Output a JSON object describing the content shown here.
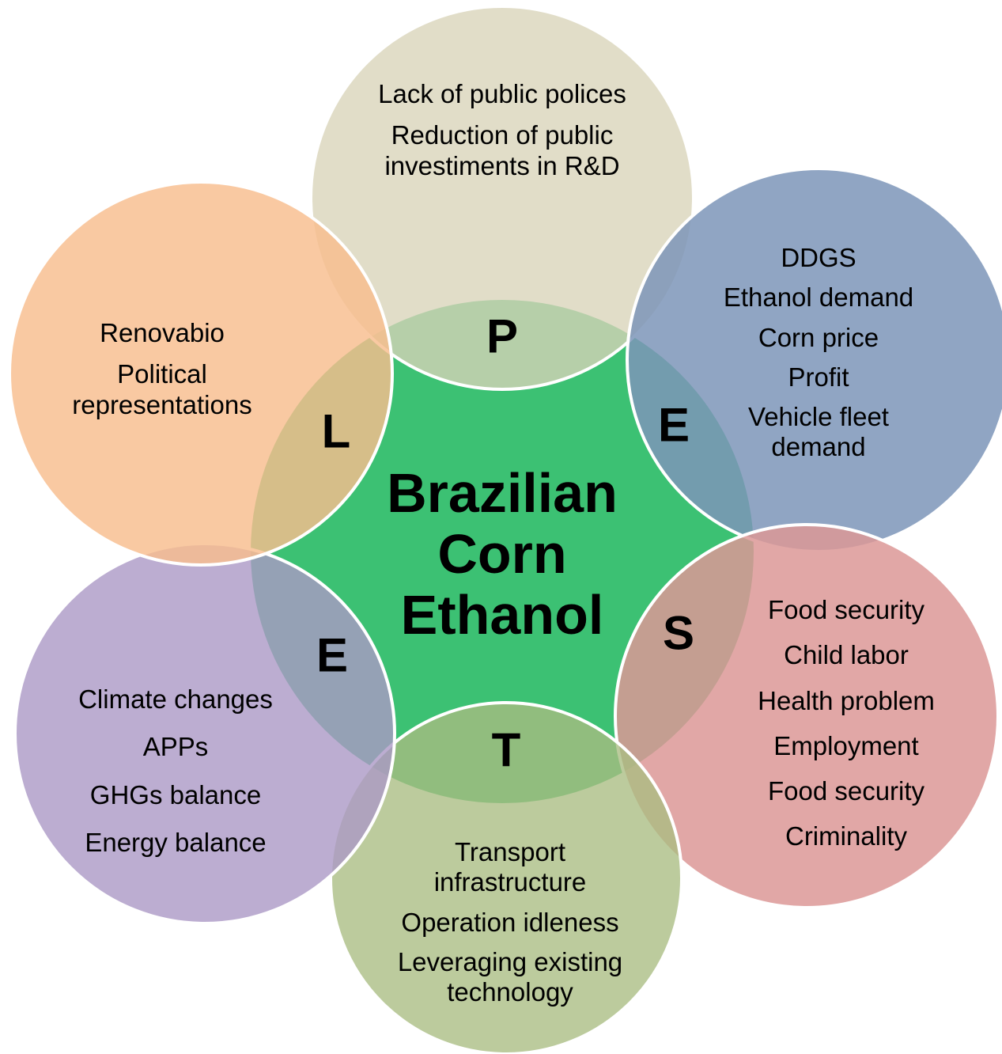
{
  "center": {
    "title": "Brazilian Corn Ethanol"
  },
  "nodes": [
    {
      "letter": "P",
      "items": [
        "Lack of public polices",
        "Reduction of public investiments in R&D"
      ]
    },
    {
      "letter": "E",
      "items": [
        "DDGS",
        "Ethanol demand",
        "Corn price",
        "Profit",
        "Vehicle fleet demand"
      ]
    },
    {
      "letter": "S",
      "items": [
        "Food security",
        "Child labor",
        "Health problem",
        "Employment",
        "Food security",
        "Criminality"
      ]
    },
    {
      "letter": "T",
      "items": [
        "Transport infrastructure",
        "Operation idleness",
        "Leveraging existing technology"
      ]
    },
    {
      "letter": "E",
      "items": [
        "Climate changes",
        "APPs",
        "GHGs balance",
        "Energy balance"
      ]
    },
    {
      "letter": "L",
      "items": [
        "Renovabio",
        "Political representations"
      ]
    }
  ]
}
